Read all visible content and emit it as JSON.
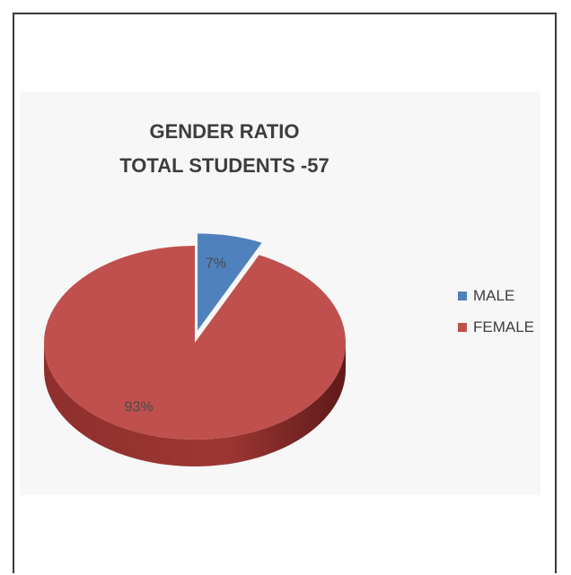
{
  "chart_data": {
    "type": "pie",
    "title": "GENDER RATIO",
    "subtitle": "TOTAL STUDENTS -57",
    "categories": [
      "MALE",
      "FEMALE"
    ],
    "values": [
      7,
      93
    ],
    "labels": [
      "7%",
      "93%"
    ],
    "colors": [
      "#4f81bd",
      "#c0504d"
    ],
    "three_d": true,
    "exploded": "MALE",
    "legend_position": "right"
  }
}
